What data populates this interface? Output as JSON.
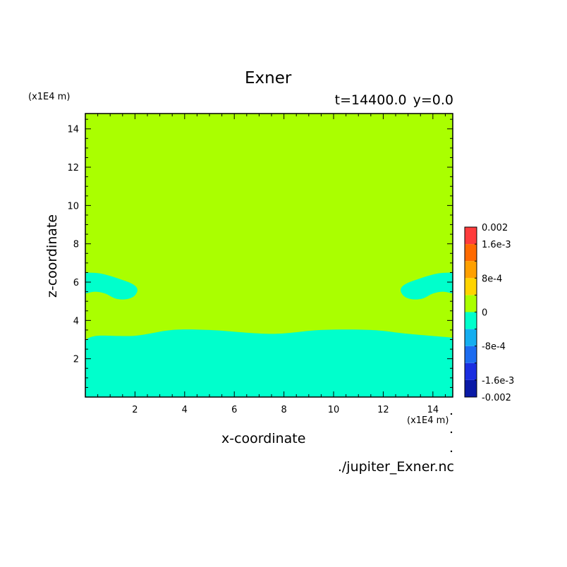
{
  "chart_data": {
    "type": "contour",
    "title": "Exner",
    "subtitle": "t=14400.0  y=0.0",
    "xlabel": "x-coordinate",
    "ylabel": "z-coordinate",
    "x_unit": "(x1E4 m)",
    "y_unit": "(x1E4 m)",
    "source": "./jupiter_Exner.nc",
    "xlim": [
      0,
      14.8
    ],
    "ylim": [
      0,
      14.8
    ],
    "xticks": [
      2,
      4,
      6,
      8,
      10,
      12,
      14
    ],
    "yticks": [
      2,
      4,
      6,
      8,
      10,
      12,
      14
    ],
    "colorbar": {
      "min": -0.002,
      "max": 0.002,
      "levels": [
        -0.002,
        -0.0016,
        -0.0012,
        -0.0008,
        -0.0004,
        0,
        0.0004,
        0.0008,
        0.0012,
        0.0016,
        0.002
      ],
      "colors": [
        "#0a1aa6",
        "#1a2ee0",
        "#1c6cf0",
        "#14aef0",
        "#00ffcc",
        "#aaff00",
        "#ffd400",
        "#ffa000",
        "#ff6a00",
        "#ff3c3c"
      ],
      "tick_labels": [
        "0.002",
        "1.6e-3",
        "8e-4",
        "0",
        "-8e-4",
        "-1.6e-3",
        "-0.002"
      ],
      "tick_values": [
        0.002,
        0.0016,
        0.0008,
        0,
        -0.0008,
        -0.0016,
        -0.002
      ]
    },
    "regions": [
      {
        "name": "upper",
        "fill_level": "0 to 4e-4",
        "color": "#aaff00",
        "description_points": []
      },
      {
        "name": "lower",
        "fill_level": "-4e-4 to 0",
        "color": "#00ffcc",
        "boundary": [
          [
            0.0,
            3.0
          ],
          [
            0.5,
            3.2
          ],
          [
            2.0,
            3.2
          ],
          [
            3.5,
            3.5
          ],
          [
            5.0,
            3.5
          ],
          [
            7.5,
            3.3
          ],
          [
            9.5,
            3.5
          ],
          [
            11.5,
            3.5
          ],
          [
            13.0,
            3.3
          ],
          [
            14.8,
            3.1
          ]
        ]
      },
      {
        "name": "left-blob",
        "fill_level": "-4e-4 to 0",
        "color": "#00ffcc",
        "outline": [
          [
            0.0,
            6.5
          ],
          [
            0.6,
            6.45
          ],
          [
            1.3,
            6.2
          ],
          [
            1.9,
            5.9
          ],
          [
            2.1,
            5.6
          ],
          [
            1.95,
            5.25
          ],
          [
            1.6,
            5.1
          ],
          [
            1.2,
            5.15
          ],
          [
            0.8,
            5.4
          ],
          [
            0.4,
            5.5
          ],
          [
            0.0,
            5.4
          ]
        ]
      },
      {
        "name": "right-blob",
        "fill_level": "-4e-4 to 0",
        "color": "#00ffcc",
        "outline": [
          [
            14.8,
            6.5
          ],
          [
            14.2,
            6.45
          ],
          [
            13.5,
            6.2
          ],
          [
            12.9,
            5.9
          ],
          [
            12.7,
            5.6
          ],
          [
            12.85,
            5.25
          ],
          [
            13.2,
            5.1
          ],
          [
            13.6,
            5.15
          ],
          [
            14.0,
            5.4
          ],
          [
            14.4,
            5.5
          ],
          [
            14.8,
            5.4
          ]
        ]
      }
    ]
  }
}
